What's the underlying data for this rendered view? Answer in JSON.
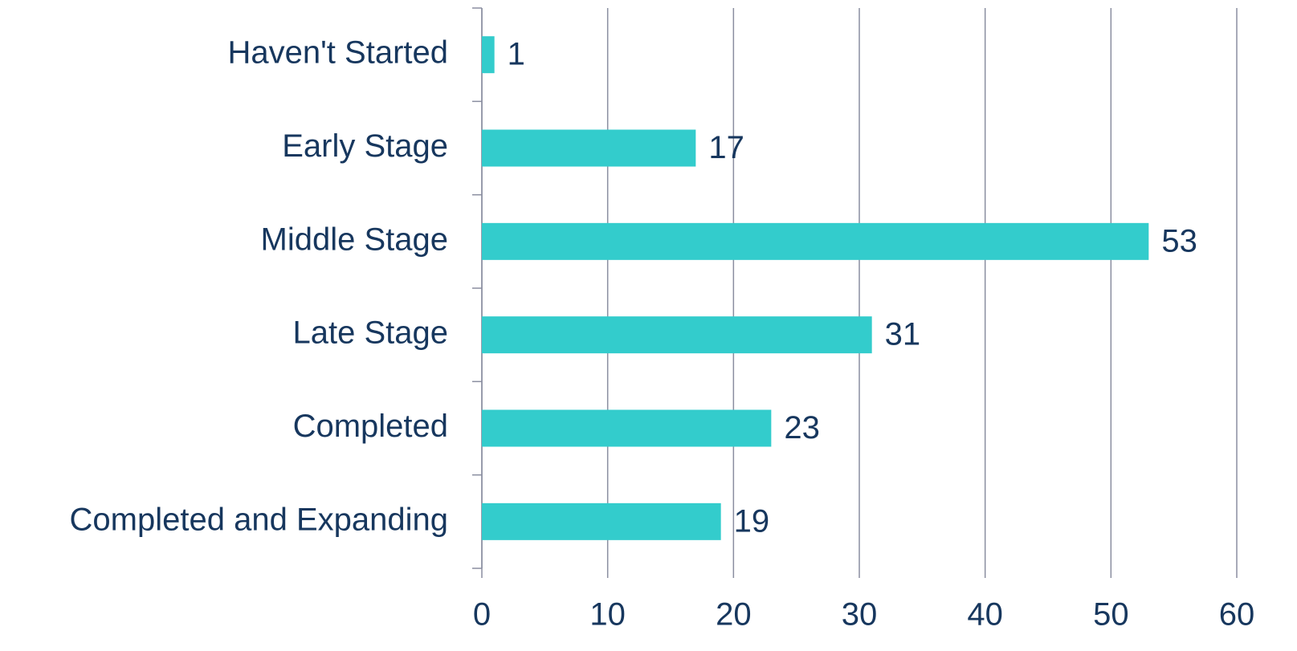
{
  "chart_data": {
    "type": "hbar",
    "categories": [
      "Haven't Started",
      "Early Stage",
      "Middle Stage",
      "Late Stage",
      "Completed",
      "Completed and Expanding"
    ],
    "values": [
      1,
      17,
      53,
      31,
      23,
      19
    ],
    "color": "#33cccc",
    "xlim": [
      0,
      60
    ],
    "xticks": [
      0,
      10,
      20,
      30,
      40,
      50,
      60
    ],
    "grid": true
  }
}
